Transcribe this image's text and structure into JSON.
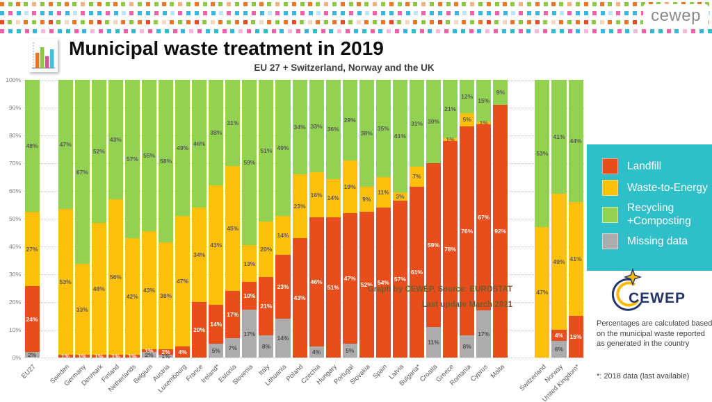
{
  "header": {
    "brand": "cewep"
  },
  "title_block": {
    "title": "Municipal waste treatment in 2019",
    "subtitle": "EU 27 + Switzerland, Norway and the UK"
  },
  "chart_data": {
    "type": "bar",
    "variant": "stacked-100-percent",
    "title": "Municipal waste treatment in 2019",
    "subtitle": "EU 27 + Switzerland, Norway and the UK",
    "y_axis": {
      "min": 0,
      "max": 100,
      "step": 10,
      "tick_suffix": "%"
    },
    "stack_order": [
      "missing",
      "landfill",
      "wte",
      "recycling"
    ],
    "series_meta": {
      "landfill": {
        "label": "Landfill",
        "color": "#E84E1B",
        "label_color": "#FFFFFF"
      },
      "wte": {
        "label": "Waste-to-Energy",
        "color": "#FEC00D",
        "label_color": "#595959"
      },
      "recycling": {
        "label": "Recycling +Composting",
        "color": "#93D152",
        "label_color": "#595959"
      },
      "missing": {
        "label": "Missing data",
        "color": "#ACACAC",
        "label_color": "#4F4F4F"
      }
    },
    "countries": [
      {
        "name": "EU27",
        "group": "aggregate",
        "values": {
          "missing": 2,
          "landfill": 24,
          "wte": 27,
          "recycling": 48
        }
      },
      {
        "name": "Sweden",
        "group": "eu",
        "values": {
          "landfill": 1,
          "wte": 53,
          "recycling": 47
        }
      },
      {
        "name": "Germany",
        "group": "eu",
        "values": {
          "landfill": 1,
          "wte": 33,
          "recycling": 67
        }
      },
      {
        "name": "Denmark",
        "group": "eu",
        "values": {
          "landfill": 1,
          "wte": 48,
          "recycling": 52
        }
      },
      {
        "name": "Finland",
        "group": "eu",
        "values": {
          "landfill": 1,
          "wte": 56,
          "recycling": 43
        }
      },
      {
        "name": "Netherlands",
        "group": "eu",
        "values": {
          "landfill": 1,
          "wte": 42,
          "recycling": 57
        }
      },
      {
        "name": "Belgium",
        "group": "eu",
        "values": {
          "missing": 2,
          "landfill": 1,
          "wte": 43,
          "recycling": 55
        }
      },
      {
        "name": "Austria",
        "group": "eu",
        "values": {
          "missing": 1,
          "landfill": 2,
          "wte": 38,
          "recycling": 58
        }
      },
      {
        "name": "Luxembourg",
        "group": "eu",
        "values": {
          "landfill": 4,
          "wte": 47,
          "recycling": 49
        }
      },
      {
        "name": "France",
        "group": "eu",
        "values": {
          "landfill": 20,
          "wte": 34,
          "recycling": 46
        }
      },
      {
        "name": "Ireland*",
        "group": "eu",
        "values": {
          "missing": 5,
          "landfill": 14,
          "wte": 43,
          "recycling": 38
        }
      },
      {
        "name": "Estonia",
        "group": "eu",
        "values": {
          "missing": 7,
          "landfill": 17,
          "wte": 45,
          "recycling": 31
        }
      },
      {
        "name": "Slovenia",
        "group": "eu",
        "values": {
          "missing": 17,
          "landfill": 10,
          "wte": 13,
          "recycling": 59
        }
      },
      {
        "name": "Italy",
        "group": "eu",
        "values": {
          "missing": 8,
          "landfill": 21,
          "wte": 20,
          "recycling": 51
        }
      },
      {
        "name": "Lithuania",
        "group": "eu",
        "values": {
          "missing": 14,
          "landfill": 23,
          "wte": 14,
          "recycling": 49
        }
      },
      {
        "name": "Poland",
        "group": "eu",
        "values": {
          "landfill": 43,
          "wte": 23,
          "recycling": 34
        }
      },
      {
        "name": "Czechia",
        "group": "eu",
        "values": {
          "missing": 4,
          "landfill": 46,
          "wte": 16,
          "recycling": 33
        }
      },
      {
        "name": "Hungary",
        "group": "eu",
        "values": {
          "landfill": 51,
          "wte": 14,
          "recycling": 36
        }
      },
      {
        "name": "Portugal",
        "group": "eu",
        "values": {
          "missing": 5,
          "landfill": 47,
          "wte": 19,
          "recycling": 29
        }
      },
      {
        "name": "Slovakia",
        "group": "eu",
        "values": {
          "landfill": 52,
          "wte": 9,
          "recycling": 38
        }
      },
      {
        "name": "Spain",
        "group": "eu",
        "values": {
          "landfill": 54,
          "wte": 11,
          "recycling": 35
        }
      },
      {
        "name": "Latvia",
        "group": "eu",
        "values": {
          "landfill": 57,
          "wte": 3,
          "recycling": 41
        }
      },
      {
        "name": "Bulgaria*",
        "group": "eu",
        "values": {
          "landfill": 61,
          "wte": 7,
          "recycling": 31
        }
      },
      {
        "name": "Croatia",
        "group": "eu",
        "values": {
          "missing": 11,
          "landfill": 59,
          "recycling": 30
        }
      },
      {
        "name": "Greece",
        "group": "eu",
        "values": {
          "landfill": 78,
          "wte": 1,
          "recycling": 21
        }
      },
      {
        "name": "Romania",
        "group": "eu",
        "values": {
          "missing": 8,
          "landfill": 76,
          "wte": 5,
          "recycling": 12
        }
      },
      {
        "name": "Cyprus",
        "group": "eu",
        "values": {
          "missing": 17,
          "landfill": 67,
          "wte": 1,
          "recycling": 15
        }
      },
      {
        "name": "Malta",
        "group": "eu",
        "values": {
          "landfill": 92,
          "recycling": 9
        }
      },
      {
        "name": "Switzerland",
        "group": "non-eu",
        "values": {
          "wte": 47,
          "recycling": 53
        }
      },
      {
        "name": "Norway",
        "group": "non-eu",
        "values": {
          "missing": 6,
          "landfill": 4,
          "wte": 49,
          "recycling": 41
        }
      },
      {
        "name": "United Kingdom*",
        "group": "non-eu",
        "values": {
          "landfill": 15,
          "wte": 41,
          "recycling": 44
        }
      }
    ],
    "annotation": {
      "line1": "Graph by CEWEP, Source: EUROSTAT",
      "line2": "Last update March 2021"
    }
  },
  "legend": {
    "bg_color": "#2EBFC9",
    "items": [
      {
        "key": "landfill",
        "lines": [
          "Landfill"
        ]
      },
      {
        "key": "wte",
        "lines": [
          "Waste-to-Energy"
        ]
      },
      {
        "key": "recycling",
        "lines": [
          "Recycling",
          "+Composting"
        ]
      },
      {
        "key": "missing",
        "lines": [
          "Missing data"
        ]
      }
    ]
  },
  "footer": {
    "logo_text": "CEWEP",
    "note": "Percentages are calculated based on the municipal waste reported as generated in the country",
    "asterisk_note": "*: 2018 data (last available)"
  }
}
